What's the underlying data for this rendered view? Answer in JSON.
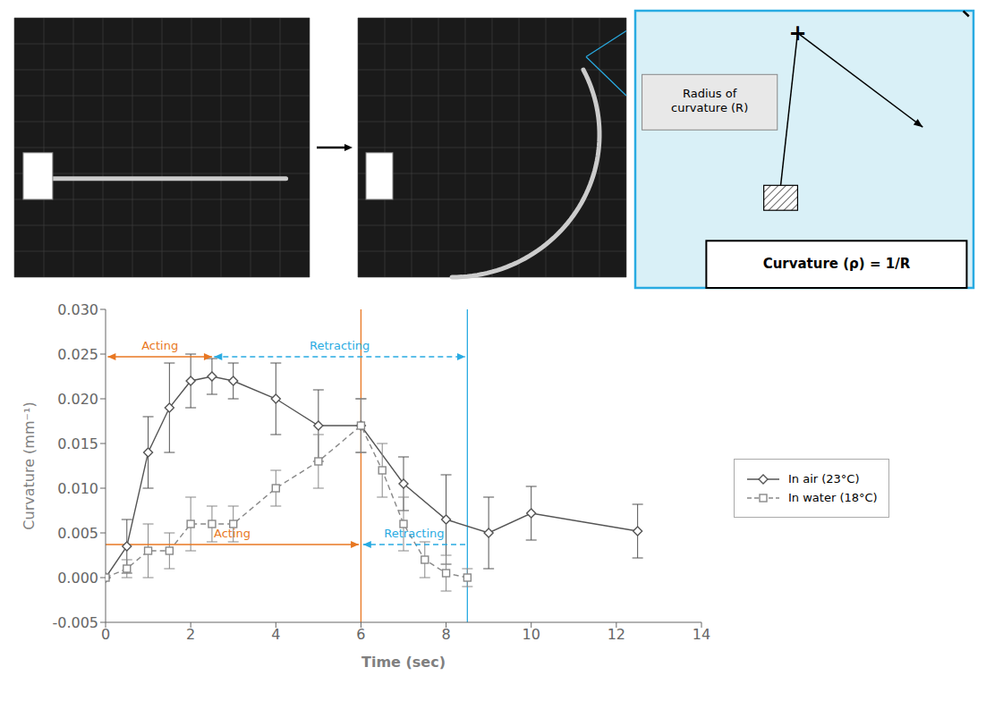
{
  "chart_data": {
    "type": "line",
    "xlabel": "Time (sec)",
    "ylabel": "Curvature (mm⁻¹)",
    "xlim": [
      0,
      14
    ],
    "xticks": [
      0,
      2,
      4,
      6,
      8,
      10,
      12,
      14
    ],
    "ylim": [
      -0.005,
      0.03
    ],
    "yticks": [
      {
        "value": -0.005,
        "label": "-0.005"
      },
      {
        "value": 0.0,
        "label": "0.000"
      },
      {
        "value": 0.005,
        "label": "0.005"
      },
      {
        "value": 0.01,
        "label": "0.010"
      },
      {
        "value": 0.015,
        "label": "0.015"
      },
      {
        "value": 0.02,
        "label": "0.020"
      },
      {
        "value": 0.025,
        "label": "0.025"
      },
      {
        "value": 0.03,
        "label": "0.030"
      }
    ],
    "grid": false,
    "series": [
      {
        "name": "In air (23°C)",
        "color": "#555555",
        "marker": "diamond",
        "line_style": "solid",
        "x": [
          0,
          0.5,
          1,
          1.5,
          2,
          2.5,
          3,
          4,
          5,
          6,
          7,
          8,
          9,
          10,
          12.5
        ],
        "values": [
          0.0,
          0.0035,
          0.014,
          0.019,
          0.022,
          0.0225,
          0.022,
          0.02,
          0.017,
          0.017,
          0.0105,
          0.0065,
          0.005,
          0.0072,
          0.0052
        ],
        "yerr": [
          0.0,
          0.003,
          0.004,
          0.005,
          0.003,
          0.002,
          0.002,
          0.004,
          0.004,
          0.003,
          0.003,
          0.005,
          0.004,
          0.003,
          0.003
        ]
      },
      {
        "name": "In water (18°C)",
        "color": "#888888",
        "marker": "square",
        "line_style": "dashed",
        "x": [
          0,
          0.5,
          1,
          1.5,
          2,
          2.5,
          3,
          4,
          5,
          6,
          6.5,
          7,
          7.5,
          8,
          8.5
        ],
        "values": [
          0.0,
          0.001,
          0.003,
          0.003,
          0.006,
          0.006,
          0.006,
          0.01,
          0.013,
          0.017,
          0.012,
          0.006,
          0.002,
          0.0005,
          0.0
        ],
        "yerr": [
          0.0,
          0.001,
          0.003,
          0.002,
          0.003,
          0.002,
          0.002,
          0.002,
          0.003,
          0.003,
          0.003,
          0.003,
          0.002,
          0.002,
          0.001
        ]
      }
    ],
    "vlines": [
      {
        "x": 6.0,
        "color": "#E87722"
      },
      {
        "x": 8.5,
        "color": "#29ABE2"
      }
    ],
    "annotations": [
      {
        "text": "Acting",
        "x": [
          0.05,
          2.5
        ],
        "y": 0.0247,
        "color": "#E87722",
        "arrow": "both",
        "line_style": "solid"
      },
      {
        "text": "Retracting",
        "x": [
          2.55,
          8.45
        ],
        "y": 0.0247,
        "color": "#29ABE2",
        "arrow": "both",
        "line_style": "dashed"
      },
      {
        "text": "Acting",
        "x": [
          0.0,
          5.95
        ],
        "y": 0.0037,
        "color": "#E87722",
        "arrow": "end",
        "line_style": "solid"
      },
      {
        "text": "Retracting",
        "x": [
          8.45,
          6.05
        ],
        "y": 0.0037,
        "color": "#29ABE2",
        "arrow": "end",
        "line_style": "dashed"
      }
    ],
    "diagram": {
      "center_mark": "+",
      "radius_label": "Radius of\ncurvature (R)",
      "curvature_label": "Curvature (ρ) = 1/R",
      "photo_color": "#1a1a1a",
      "box_color": "#D9F0F7",
      "box_border_color": "#29ABE2"
    }
  }
}
